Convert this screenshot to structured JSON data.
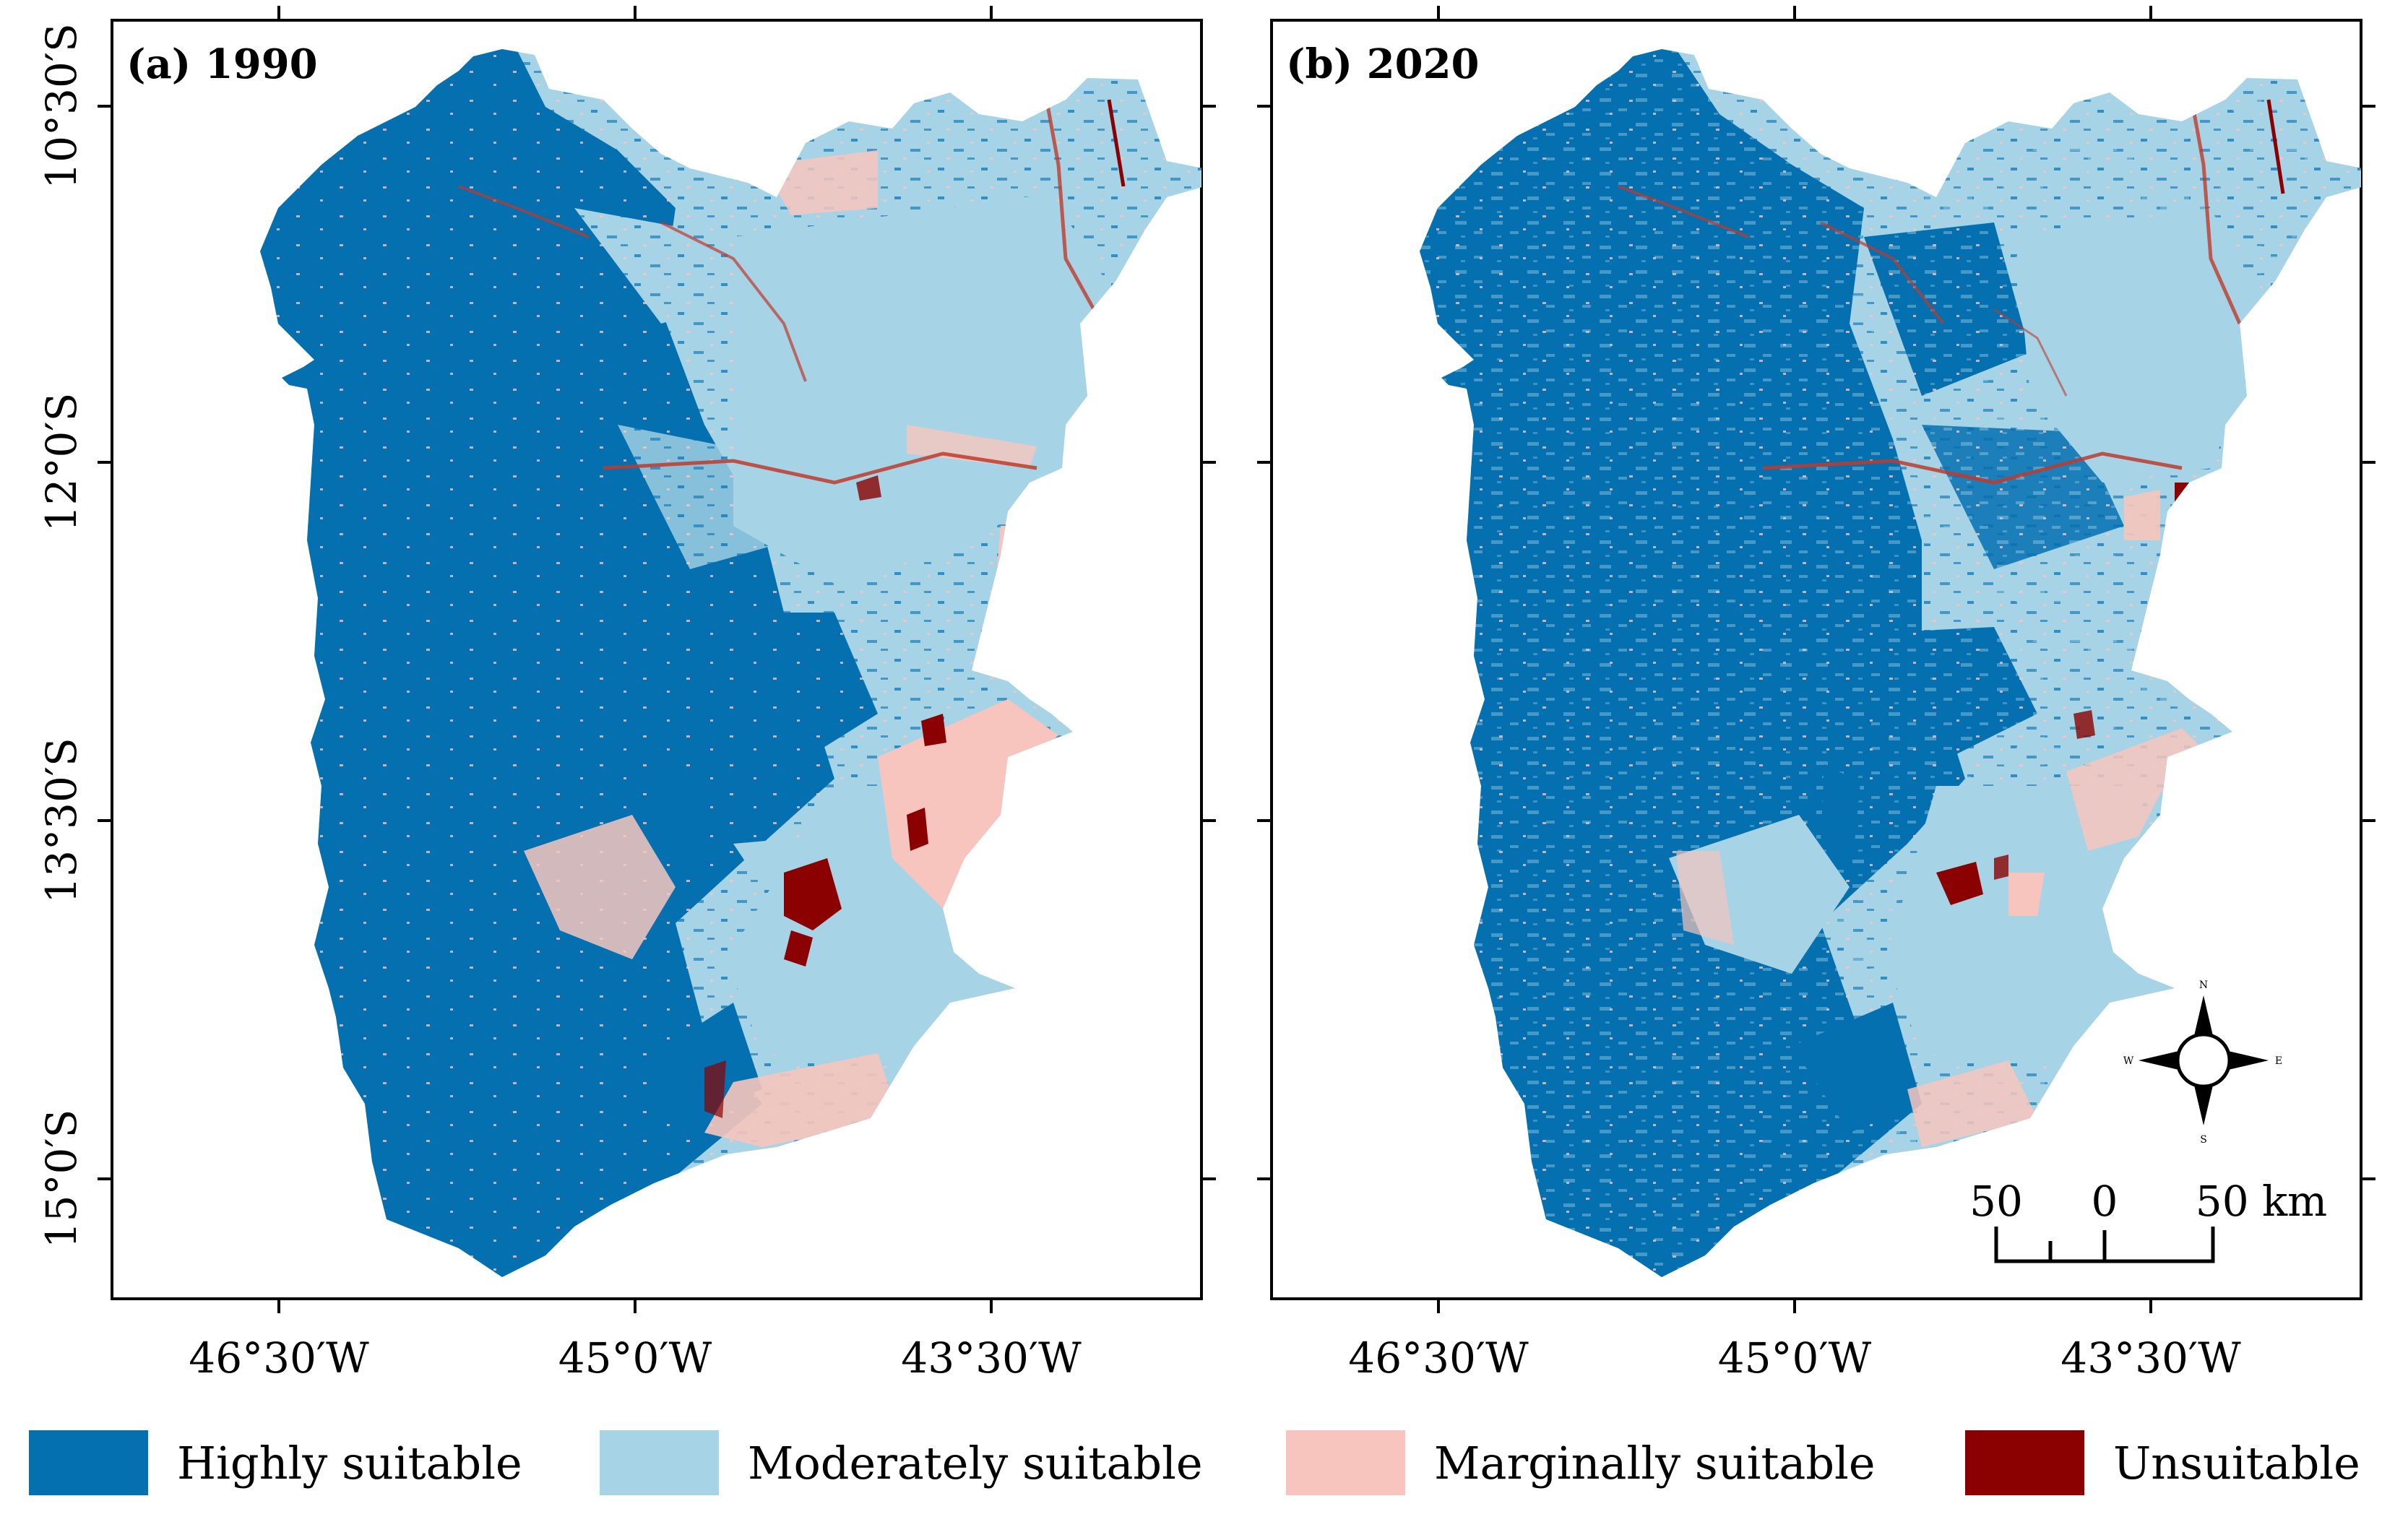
{
  "panels": [
    {
      "id": "a",
      "label": "(a) 1990"
    },
    {
      "id": "b",
      "label": "(b) 2020"
    }
  ],
  "axes": {
    "x_ticks": [
      "46°30′W",
      "45°0′W",
      "43°30′W"
    ],
    "y_ticks": [
      "10°30′S",
      "12°0′S",
      "13°30′S",
      "15°0′S"
    ]
  },
  "legend": [
    {
      "label": "Highly suitable",
      "color": "#0570b0"
    },
    {
      "label": "Moderately suitable",
      "color": "#a6d4e6"
    },
    {
      "label": "Marginally suitable",
      "color": "#f7c5bd"
    },
    {
      "label": "Unsuitable",
      "color": "#8b0000"
    }
  ],
  "north_arrow": {
    "n": "N",
    "s": "S",
    "e": "E",
    "w": "W"
  },
  "scale_bar": {
    "labels": [
      "50",
      "0",
      "50 km"
    ]
  }
}
